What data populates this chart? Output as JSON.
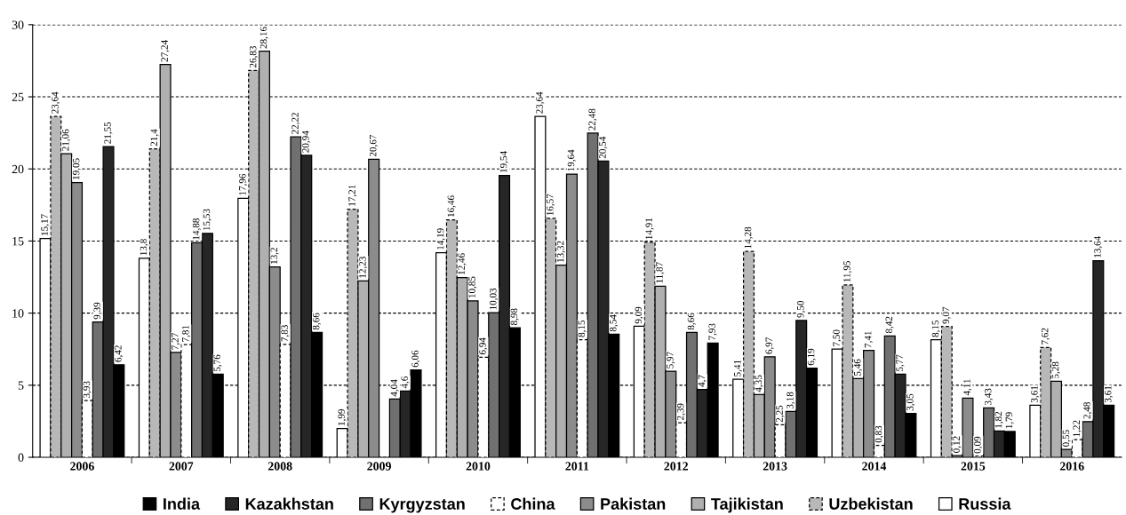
{
  "chart_data": {
    "type": "bar",
    "categories": [
      "2006",
      "2007",
      "2008",
      "2009",
      "2010",
      "2011",
      "2012",
      "2013",
      "2014",
      "2015",
      "2016"
    ],
    "series": [
      {
        "name": "Russia",
        "color": "#ffffff",
        "values": [
          15.17,
          13.8,
          17.96,
          1.99,
          14.19,
          23.64,
          9.09,
          5.41,
          7.5,
          8.15,
          3.61
        ],
        "value_labels": [
          "15,17",
          "13,8",
          "17,96",
          "1,99",
          "14,19",
          "23,64",
          "9,09",
          "5,41",
          "7,50",
          "8,15",
          "3,61"
        ]
      },
      {
        "name": "Uzbekistan",
        "color": "#b8b8b8",
        "line_style": "dashed",
        "values": [
          23.64,
          21.4,
          26.83,
          17.21,
          16.46,
          16.57,
          14.91,
          14.28,
          11.95,
          9.07,
          7.62
        ],
        "value_labels": [
          "23,64",
          "21,4",
          "26,83",
          "17,21",
          "16,46",
          "16,57",
          "14,91",
          "14,28",
          "11,95",
          "9,07",
          "7,62"
        ]
      },
      {
        "name": "Tajikistan",
        "color": "#b0b0b0",
        "values": [
          21.06,
          27.24,
          28.16,
          12.23,
          12.46,
          13.32,
          11.87,
          4.35,
          5.46,
          0.12,
          5.28
        ],
        "value_labels": [
          "21,06",
          "27,24",
          "28,16",
          "12,23",
          "12,46",
          "13,32",
          "11,87",
          "4,35",
          "5,46",
          "0,12",
          "5,28"
        ]
      },
      {
        "name": "Pakistan",
        "color": "#8c8c8c",
        "values": [
          19.05,
          7.27,
          13.2,
          20.67,
          10.85,
          19.64,
          5.97,
          6.97,
          7.41,
          4.11,
          0.55
        ],
        "value_labels": [
          "19,05",
          "7,27",
          "13,2",
          "20,67",
          "10,85",
          "19,64",
          "5,97",
          "6,97",
          "7,41",
          "4,11",
          "0,55"
        ]
      },
      {
        "name": "China",
        "color": "#ffffff",
        "line_style": "dashed",
        "values": [
          3.93,
          7.81,
          7.83,
          null,
          6.94,
          8.15,
          2.39,
          2.25,
          0.83,
          0.09,
          1.22
        ],
        "value_labels": [
          "3,93",
          "7,81",
          "7,83",
          null,
          "6,94",
          "8,15",
          "2,39",
          "2,25",
          "0,83",
          "0,09",
          "1,22"
        ]
      },
      {
        "name": "Kyrgyzstan",
        "color": "#707070",
        "values": [
          9.39,
          14.88,
          22.22,
          4.04,
          10.03,
          22.48,
          8.66,
          3.18,
          8.42,
          3.43,
          2.48
        ],
        "value_labels": [
          "9,39",
          "14,88",
          "22,22",
          "4,04",
          "10,03",
          "22,48",
          "8,66",
          "3,18",
          "8,42",
          "3,43",
          "2,48"
        ]
      },
      {
        "name": "Kazakhstan",
        "color": "#262626",
        "values": [
          21.55,
          15.53,
          20.94,
          4.6,
          19.54,
          20.54,
          4.7,
          9.5,
          5.77,
          1.82,
          13.64
        ],
        "value_labels": [
          "21,55",
          "15,53",
          "20,94",
          "4,6",
          "19,54",
          "20,54",
          "4,7",
          "9,50",
          "5,77",
          "1,82",
          "13,64"
        ]
      },
      {
        "name": "India",
        "color": "#000000",
        "values": [
          6.42,
          5.76,
          8.66,
          6.06,
          8.98,
          8.54,
          7.93,
          6.19,
          3.05,
          1.79,
          3.61
        ],
        "value_labels": [
          "6,42",
          "5,76",
          "8,66",
          "6,06",
          "8,98",
          "8,54",
          "7,93",
          "6,19",
          "3,05",
          "1,79",
          "3,61"
        ]
      }
    ],
    "ylim": [
      0,
      30
    ],
    "yticks": [
      0,
      5,
      10,
      15,
      20,
      25,
      30
    ],
    "grid": "y",
    "legend": "bottom"
  }
}
